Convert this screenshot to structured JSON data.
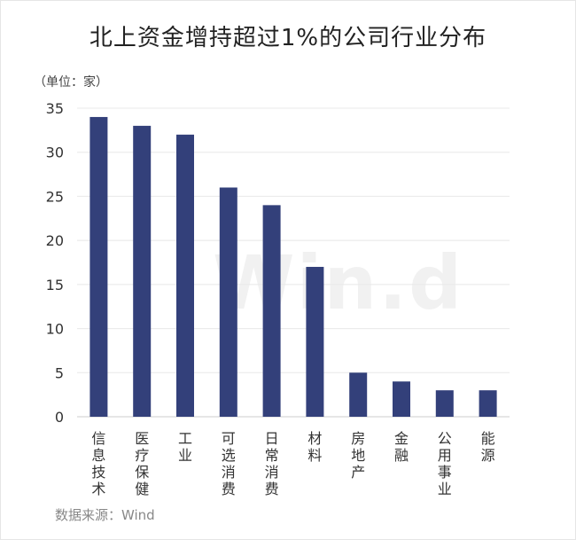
{
  "chart_data": {
    "type": "bar",
    "title": "北上资金增持超过1%的公司行业分布",
    "unit_label": "（单位：家）",
    "source": "数据来源：Wind",
    "watermark": "Win.d",
    "categories": [
      "信息技术",
      "医疗保健",
      "工业",
      "可选消费",
      "日常消费",
      "材料",
      "房地产",
      "金融",
      "公用事业",
      "能源"
    ],
    "values": [
      34,
      33,
      32,
      26,
      24,
      17,
      5,
      4,
      3,
      3
    ],
    "ylim": [
      0,
      35
    ],
    "yticks": [
      0,
      5,
      10,
      15,
      20,
      25,
      30,
      35
    ],
    "grid": true,
    "legend": "none",
    "colors": {
      "bar": "#33407a",
      "grid": "#e8e8e8",
      "axis": "#cccccc",
      "tick_text": "#333333"
    }
  }
}
